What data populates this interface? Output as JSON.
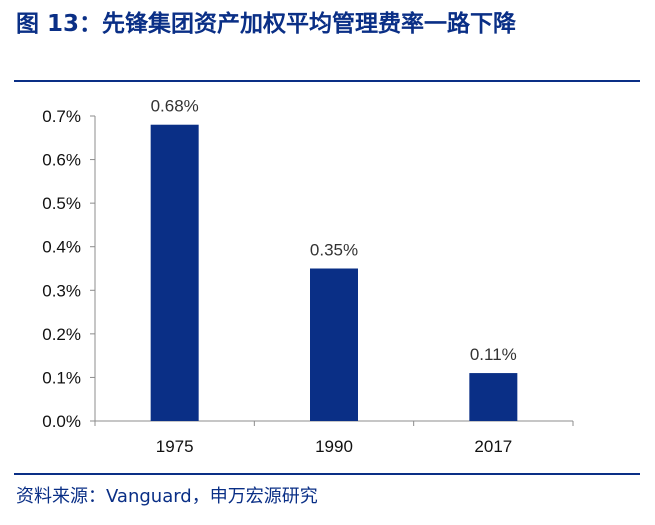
{
  "header": {
    "title": "图 13：先锋集团资产加权平均管理费率一路下降"
  },
  "footer": {
    "source": "资料来源：Vanguard，申万宏源研究"
  },
  "colors": {
    "brand": "#0a2f86",
    "bar": "#0a2f86",
    "axis": "#8c8c8c"
  },
  "chart_data": {
    "type": "bar",
    "categories": [
      "1975",
      "1990",
      "2017"
    ],
    "series": [
      {
        "values": [
          0.68,
          0.35,
          0.11
        ],
        "data_labels": [
          "0.68%",
          "0.35%",
          "0.11%"
        ]
      }
    ],
    "y_ticks": [
      0.0,
      0.1,
      0.2,
      0.3,
      0.4,
      0.5,
      0.6,
      0.7
    ],
    "y_tick_labels": [
      "0.0%",
      "0.1%",
      "0.2%",
      "0.3%",
      "0.4%",
      "0.5%",
      "0.6%",
      "0.7%"
    ],
    "ylim": [
      0,
      0.7
    ],
    "grid": false,
    "legend": "none"
  }
}
